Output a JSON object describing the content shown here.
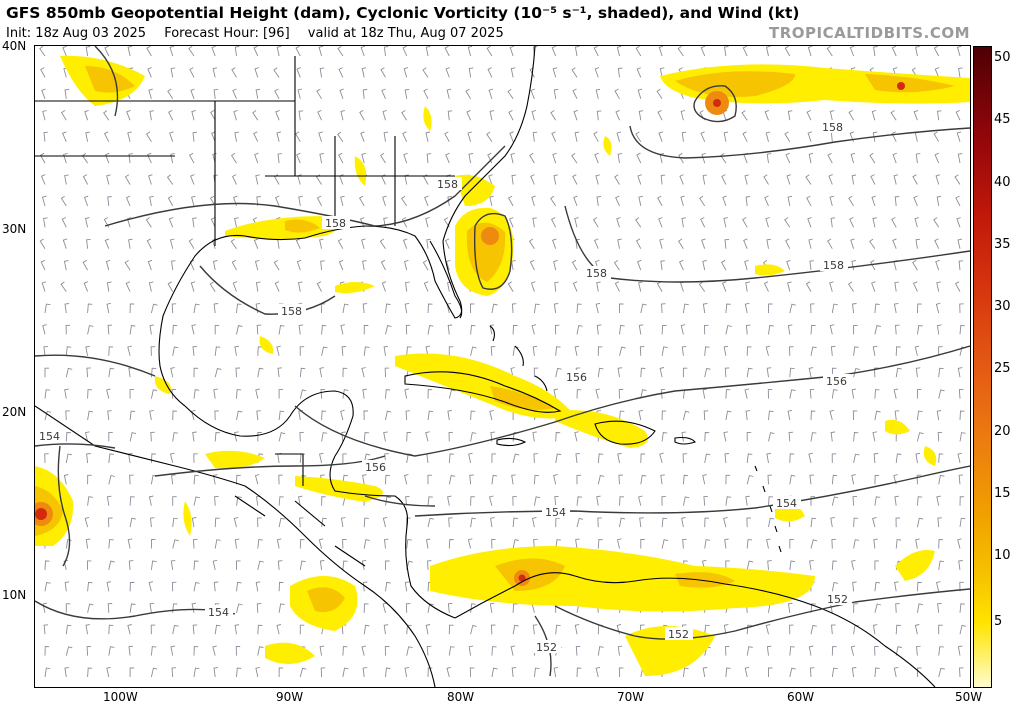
{
  "header": {
    "title": "GFS 850mb Geopotential Height (dam), Cyclonic Vorticity (10⁻⁵ s⁻¹, shaded), and Wind (kt)",
    "init": "Init: 18z Aug 03 2025",
    "forecast_hour": "Forecast Hour: [96]",
    "valid": "valid at 18z Thu, Aug 07 2025",
    "brand": "TROPICALTIDBITS.COM"
  },
  "axes": {
    "lat_labels": [
      "40N",
      "30N",
      "20N",
      "10N"
    ],
    "lon_labels": [
      "100W",
      "90W",
      "80W",
      "70W",
      "60W",
      "50W"
    ]
  },
  "map": {
    "lat_range": [
      5,
      40
    ],
    "lon_range": [
      -105,
      -50
    ],
    "contour_labels": [
      "158",
      "158",
      "158",
      "158",
      "158",
      "158",
      "156",
      "156",
      "156",
      "154",
      "154",
      "154",
      "154",
      "152",
      "152",
      "152"
    ],
    "colors": {
      "shade_light": "#ffee00",
      "shade_mid": "#f6c400",
      "shade_orange": "#ee8a10",
      "shade_red": "#d22a0c",
      "contour": "#3a3a3a",
      "coast": "#000000",
      "barb": "#8c8c9a"
    }
  },
  "colorbar": {
    "ticks": [
      "50",
      "45",
      "40",
      "35",
      "30",
      "25",
      "20",
      "15",
      "10",
      "5"
    ],
    "range": [
      0,
      52
    ]
  }
}
